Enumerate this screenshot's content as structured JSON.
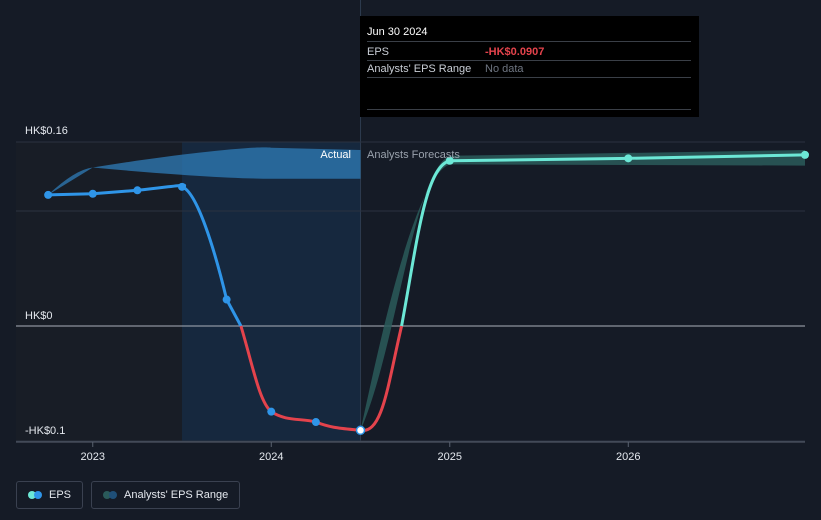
{
  "chart_data": {
    "type": "line",
    "y_axis": {
      "ticks": [
        "HK$0.16",
        "HK$0",
        "-HK$0.1"
      ],
      "ylim": [
        -0.1,
        0.16
      ]
    },
    "x_axis": {
      "ticks": [
        "2023",
        "2024",
        "2025",
        "2026"
      ],
      "xlim": [
        2022.57,
        2026.99
      ]
    },
    "sections": {
      "actual": "Actual",
      "forecast": "Analysts Forecasts"
    },
    "series": [
      {
        "name": "EPS",
        "kind": "actual",
        "points": [
          {
            "x": 2022.75,
            "y": 0.114
          },
          {
            "x": 2023.0,
            "y": 0.115
          },
          {
            "x": 2023.25,
            "y": 0.118
          },
          {
            "x": 2023.5,
            "y": 0.121
          },
          {
            "x": 2023.75,
            "y": 0.023
          },
          {
            "x": 2024.0,
            "y": -0.0745
          },
          {
            "x": 2024.25,
            "y": -0.0835
          },
          {
            "x": 2024.5,
            "y": -0.0907
          }
        ]
      },
      {
        "name": "EPS",
        "kind": "forecast",
        "points": [
          {
            "x": 2024.5,
            "y": -0.0907
          },
          {
            "x": 2025.0,
            "y": 0.1437
          },
          {
            "x": 2026.0,
            "y": 0.1458
          },
          {
            "x": 2026.99,
            "y": 0.1488
          }
        ]
      }
    ],
    "analyst_range": [
      {
        "x": 2025.0,
        "low": 0.1405,
        "high": 0.148
      },
      {
        "x": 2026.0,
        "low": 0.14,
        "high": 0.1505
      },
      {
        "x": 2026.99,
        "low": 0.1395,
        "high": 0.153
      }
    ],
    "historical_range": [
      {
        "x": 2023.0,
        "low": 0.1378,
        "high": 0.1378
      },
      {
        "x": 2024.0,
        "low": 0.128,
        "high": 0.155
      },
      {
        "x": 2024.5,
        "low": 0.128,
        "high": 0.153
      }
    ],
    "highlight_x": 2024.5,
    "grid": true,
    "legend_position": "bottom-left"
  },
  "tooltip": {
    "date": "Jun 30 2024",
    "eps_label": "EPS",
    "eps_value": "-HK$0.0907",
    "range_label": "Analysts' EPS Range",
    "range_value": "No data"
  },
  "legend": {
    "eps": "EPS",
    "range": "Analysts' EPS Range"
  },
  "colors": {
    "eps_actual": "#2f95e8",
    "eps_negative": "#e4434c",
    "eps_forecast": "#6ce8d6",
    "band_actual": "#2f7cb8",
    "band_forecast": "#2a5a5a",
    "background": "#151b26"
  }
}
